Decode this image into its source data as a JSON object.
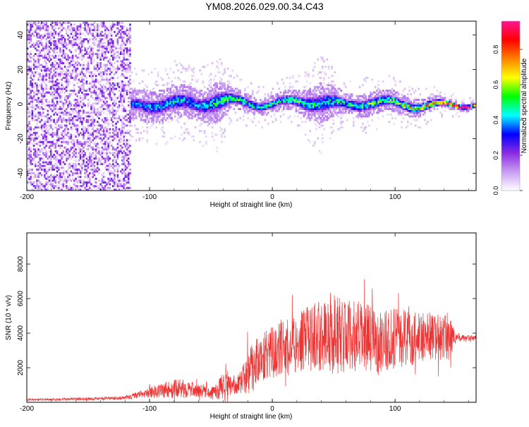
{
  "title": "YM08.2026.029.00.34.C43",
  "chart_data": [
    {
      "type": "heatmap",
      "name": "spectrogram",
      "xlabel": "Height of straight line (km)",
      "ylabel": "Frequency (Hz)",
      "xlim": [
        -200,
        166
      ],
      "ylim": [
        -50,
        48
      ],
      "xticks": [
        -200,
        -100,
        0,
        100
      ],
      "xtick_labels": [
        "-200",
        "-100",
        "0",
        "100"
      ],
      "yticks": [
        -40,
        -20,
        0,
        20,
        40
      ],
      "ytick_labels": [
        "-40",
        "-20",
        "0",
        "20",
        "40"
      ],
      "colorbar": {
        "label": "Normalized spectral amplitude",
        "range": [
          0,
          0.96
        ],
        "ticks": [
          0.0,
          0.2,
          0.4,
          0.6,
          0.8
        ],
        "tick_labels": [
          "0.0",
          "0.2",
          "0.4",
          "0.6",
          "0.8"
        ],
        "colors": [
          "#ffffff",
          "#c99cf2",
          "#8a2be2",
          "#0000ff",
          "#00ffff",
          "#00ff00",
          "#ffff00",
          "#ff8000",
          "#ff0000",
          "#ff1493"
        ]
      },
      "description_points": {
        "noise_region_x": [
          -200,
          -115
        ],
        "signal_band_center_x": [
          -110,
          -80,
          -60,
          -45,
          -30,
          -10,
          0,
          20,
          40,
          60,
          80,
          100,
          120,
          145,
          166
        ],
        "signal_band_center_y": [
          -1,
          1,
          0,
          2,
          2,
          0,
          0,
          2,
          1,
          0,
          1,
          1,
          -1,
          0,
          0
        ],
        "signal_band_halfwidth": [
          9,
          10,
          9,
          12,
          6,
          5,
          5,
          6,
          12,
          6,
          7,
          6,
          5,
          3,
          2
        ],
        "peak_amplitude": [
          0.35,
          0.45,
          0.4,
          0.5,
          0.55,
          0.5,
          0.5,
          0.55,
          0.45,
          0.5,
          0.55,
          0.6,
          0.75,
          0.9,
          0.95
        ]
      }
    },
    {
      "type": "line",
      "name": "snr",
      "xlabel": "Height of straight line (km)",
      "ylabel": "SNR (10 * v/v)",
      "xlim": [
        -200,
        166
      ],
      "ylim": [
        0,
        9800
      ],
      "xticks": [
        -200,
        -100,
        0,
        100
      ],
      "xtick_labels": [
        "-200",
        "-100",
        "0",
        "100"
      ],
      "yticks": [
        2000,
        4000,
        6000,
        8000
      ],
      "ytick_labels": [
        "2000",
        "4000",
        "6000",
        "8000"
      ],
      "color": "#ee3333",
      "envelope": {
        "x": [
          -200,
          -150,
          -120,
          -105,
          -90,
          -75,
          -60,
          -50,
          -40,
          -30,
          -25,
          -20,
          -15,
          -10,
          0,
          10,
          20,
          30,
          40,
          50,
          55,
          60,
          70,
          80,
          90,
          100,
          110,
          120,
          130,
          145,
          150,
          166
        ],
        "mean": [
          150,
          200,
          250,
          500,
          700,
          800,
          700,
          500,
          900,
          1000,
          1200,
          1800,
          2200,
          2600,
          2900,
          3100,
          3400,
          3700,
          3900,
          4000,
          3900,
          3800,
          3800,
          3700,
          3600,
          3700,
          3700,
          3800,
          3800,
          3700,
          3700,
          3700
        ],
        "amp": [
          100,
          150,
          200,
          400,
          900,
          1000,
          700,
          600,
          1500,
          900,
          1200,
          2500,
          2500,
          2600,
          2700,
          3000,
          3100,
          3500,
          3800,
          4800,
          4000,
          3800,
          3700,
          3500,
          3400,
          3200,
          3000,
          2800,
          2600,
          2300,
          400,
          300
        ]
      }
    }
  ]
}
